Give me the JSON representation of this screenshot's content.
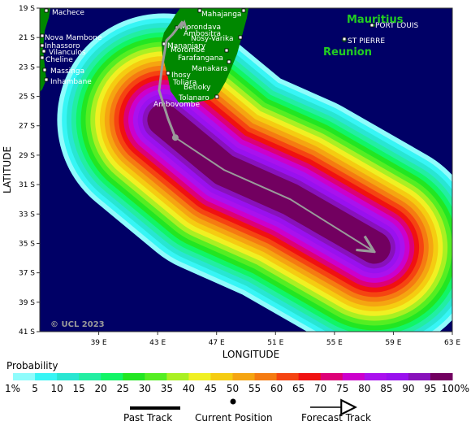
{
  "map": {
    "ocean_color": "#000066",
    "land_color": "#008800",
    "xaxis_title": "LONGITUDE",
    "yaxis_title": "LATITUDE",
    "lon_ticks": [
      "39 E",
      "43 E",
      "47 E",
      "51 E",
      "55 E",
      "59 E",
      "63 E"
    ],
    "lat_ticks": [
      "19 S",
      "21 S",
      "23 S",
      "25 S",
      "27 S",
      "29 S",
      "31 S",
      "33 S",
      "35 S",
      "37 S",
      "39 S",
      "41 S"
    ],
    "copyright": "© UCL 2023",
    "places": [
      "Machece",
      "Nova Mambone",
      "Inhassoro",
      "Vilanculos",
      "Cheline",
      "Massinga",
      "Inhambane",
      "Mahajanga",
      "Morondava",
      "Nosy-Varika",
      "Manakara",
      "Farafangana",
      "Morombe",
      "Toliara",
      "Betioky",
      "Tolanaro",
      "Ambovombe",
      "PORT LOUIS",
      "ST PIERRE",
      "Ihosy",
      "Mananjary",
      "Ambositra",
      "Onilahy"
    ],
    "islands": [
      "Mauritius",
      "Reunion"
    ]
  },
  "track": {
    "color": "#9a9a9a",
    "past": [
      [
        44.7,
        19.9
      ],
      [
        44.0,
        20.8
      ],
      [
        43.6,
        21.2
      ],
      [
        43.3,
        23.0
      ],
      [
        43.1,
        24.6
      ],
      [
        43.7,
        26.5
      ],
      [
        44.2,
        27.8
      ]
    ],
    "current": [
      44.2,
      27.8
    ],
    "forecast": [
      [
        44.2,
        27.8
      ],
      [
        47.5,
        30.0
      ],
      [
        52.0,
        32.0
      ],
      [
        57.6,
        35.5
      ]
    ]
  },
  "legend": {
    "title": "Probability",
    "labels": [
      "1%",
      "5",
      "10",
      "15",
      "20",
      "25",
      "30",
      "35",
      "40",
      "45",
      "50",
      "55",
      "60",
      "65",
      "70",
      "75",
      "80",
      "85",
      "90",
      "95",
      "100%"
    ],
    "colors": [
      "#8ffcfc",
      "#37f5f5",
      "#28e6d2",
      "#22eea2",
      "#11f566",
      "#22e622",
      "#55ee22",
      "#aaf022",
      "#f0f022",
      "#f5cc11",
      "#f5a511",
      "#f57b11",
      "#f54411",
      "#f01111",
      "#dd0077",
      "#cc00cc",
      "#aa11ee",
      "#9911ee",
      "#8811bb",
      "#720060"
    ],
    "key_items": [
      "Past Track",
      "Current Position",
      "Forecast Track"
    ]
  }
}
